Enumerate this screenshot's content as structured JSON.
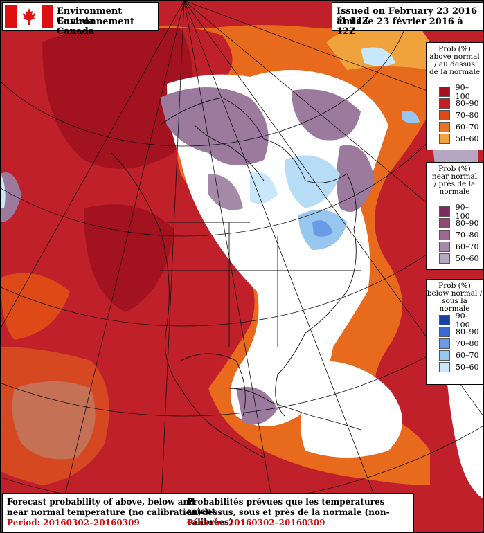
{
  "header": {
    "agency_en": "Environment Canada",
    "agency_fr": "Environnement Canada",
    "issued_en": "Issued on February 23 2016 at 12Z",
    "issued_fr": "Émis le 23 février 2016 à 12Z"
  },
  "legends": [
    {
      "title_lines": [
        "Prob (%)",
        "above normal",
        "/ au dessus",
        "de la normale"
      ],
      "entries": [
        {
          "label": "90–100",
          "color": "#a3131f"
        },
        {
          "label": "80–90",
          "color": "#c51f22"
        },
        {
          "label": "70–80",
          "color": "#de4a17"
        },
        {
          "label": "60–70",
          "color": "#ea7424"
        },
        {
          "label": "50–60",
          "color": "#f0a33c"
        }
      ]
    },
    {
      "title_lines": [
        "Prob (%)",
        "near normal",
        "/ près de la",
        "normale"
      ],
      "entries": [
        {
          "label": "90–100",
          "color": "#7e2a5c"
        },
        {
          "label": "80–90",
          "color": "#8f4a73"
        },
        {
          "label": "70–80",
          "color": "#9b6a8e"
        },
        {
          "label": "60–70",
          "color": "#a58aa8"
        },
        {
          "label": "50–60",
          "color": "#b7a6c2"
        }
      ]
    },
    {
      "title_lines": [
        "Prob (%)",
        "below normal /",
        "sous la normale"
      ],
      "entries": [
        {
          "label": "90–100",
          "color": "#1c3fa3"
        },
        {
          "label": "80–90",
          "color": "#3a6ad6"
        },
        {
          "label": "70–80",
          "color": "#6a9be6"
        },
        {
          "label": "60–70",
          "color": "#97c6ef"
        },
        {
          "label": "50–60",
          "color": "#c9e7fb"
        }
      ]
    }
  ],
  "footer": {
    "en_line1": "Forecast probability of above, below and",
    "en_line2": "near normal temperature (no calibration)",
    "en_period": "Period: 20160302–20160309",
    "fr_line1": "Probabilités prévues que les températures soient",
    "fr_line2": "au-dessus, sous et près de la normale (non-calibrées)",
    "fr_period": "Période: 20160302–20160309"
  },
  "colors": {
    "above": "#c0202a",
    "near_normal": "#ffffff",
    "purple": "#9b7a9e",
    "blue": "#8fc4ee",
    "orange": "#e86a1c"
  }
}
